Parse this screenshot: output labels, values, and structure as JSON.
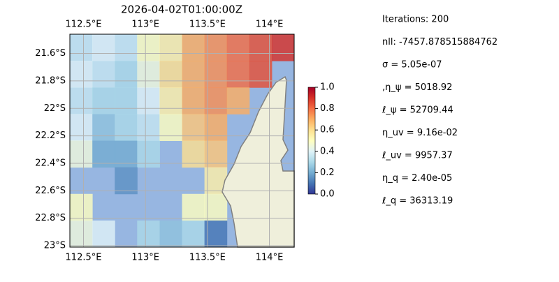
{
  "chart_data": {
    "type": "map",
    "title": "2026-04-02T01:00:00Z",
    "xlim": [
      112.39,
      114.2
    ],
    "ylim": [
      -23.01,
      -21.46
    ],
    "xticks": [
      {
        "value": 112.5,
        "label": "112.5°E"
      },
      {
        "value": 113,
        "label": "113°E"
      },
      {
        "value": 113.5,
        "label": "113.5°E"
      },
      {
        "value": 114,
        "label": "114°E"
      }
    ],
    "yticks": [
      {
        "value": -21.6,
        "label": "21.6°S"
      },
      {
        "value": -21.8,
        "label": "21.8°S"
      },
      {
        "value": -22,
        "label": "22°S"
      },
      {
        "value": -22.2,
        "label": "22.2°S"
      },
      {
        "value": -22.4,
        "label": "22.4°S"
      },
      {
        "value": -22.6,
        "label": "22.6°S"
      },
      {
        "value": -22.8,
        "label": "22.8°S"
      },
      {
        "value": -23,
        "label": "23°S"
      }
    ],
    "grid": true,
    "field": [
      [
        0.35,
        0.4,
        0.35,
        0.5,
        0.55,
        0.7,
        0.75,
        0.8,
        0.85,
        0.9
      ],
      [
        0.4,
        0.35,
        0.3,
        0.45,
        0.6,
        0.7,
        0.75,
        0.8,
        0.85,
        null
      ],
      [
        0.35,
        0.3,
        0.3,
        0.4,
        0.55,
        0.7,
        0.75,
        0.7,
        null,
        null
      ],
      [
        0.4,
        0.25,
        0.3,
        0.35,
        0.5,
        0.65,
        0.7,
        null,
        null,
        null
      ],
      [
        0.45,
        0.2,
        0.2,
        0.3,
        null,
        0.6,
        0.65,
        null,
        null,
        null
      ],
      [
        null,
        null,
        0.15,
        null,
        null,
        null,
        0.55,
        null,
        null,
        null
      ],
      [
        0.5,
        null,
        null,
        null,
        null,
        0.5,
        0.5,
        null,
        null,
        null
      ],
      [
        0.45,
        0.4,
        null,
        0.3,
        0.25,
        0.3,
        0.1,
        null,
        null,
        null
      ]
    ],
    "colormap": [
      "#313695",
      "#4575b4",
      "#74add1",
      "#abd9e9",
      "#e0f3f8",
      "#ffffbf",
      "#fee090",
      "#fdae61",
      "#f46d43",
      "#d73027",
      "#a50026"
    ],
    "clim": [
      0,
      1
    ],
    "cticks": [
      {
        "value": 0,
        "label": "0.0"
      },
      {
        "value": 0.2,
        "label": "0.2"
      },
      {
        "value": 0.4,
        "label": "0.4"
      },
      {
        "value": 0.6,
        "label": "0.6"
      },
      {
        "value": 0.8,
        "label": "0.8"
      },
      {
        "value": 1,
        "label": "1.0"
      }
    ],
    "annotations": [
      "Iterations: 200",
      "nll: -7457.878515884762",
      "σ = 5.05e-07",
      ",η_ψ = 5018.92",
      "ℓ_ψ = 52709.44",
      "η_uv = 9.16e-02",
      "ℓ_uv = 9957.37",
      "η_q = 2.40e-05",
      "ℓ_q = 36313.19"
    ]
  }
}
